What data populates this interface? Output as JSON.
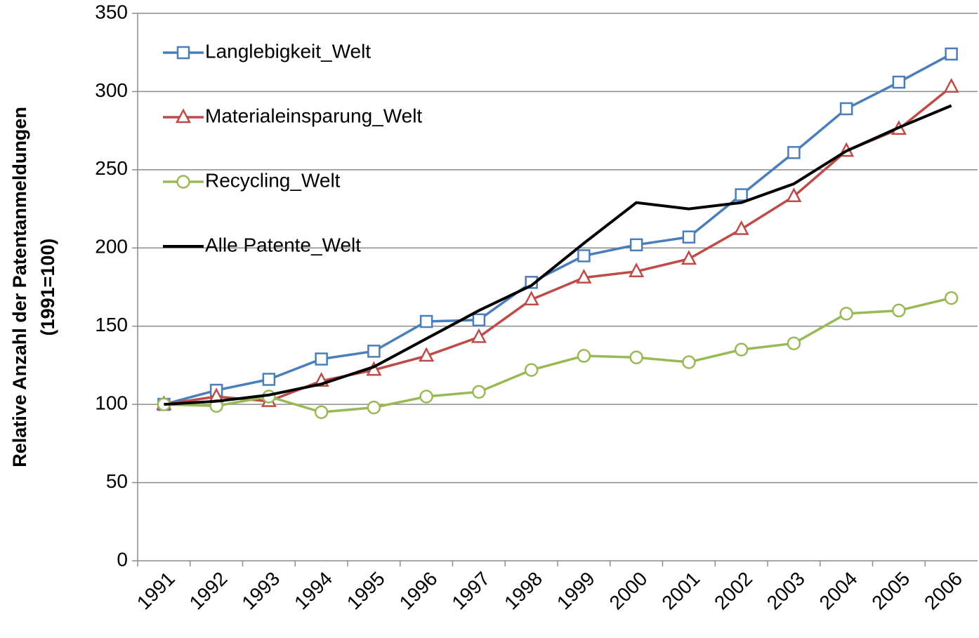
{
  "chart_data": {
    "type": "line",
    "ylabel": [
      "Relative Anzahl der Patentanmeldungen",
      "(1991=100)"
    ],
    "categories": [
      "1991",
      "1992",
      "1993",
      "1994",
      "1995",
      "1996",
      "1997",
      "1998",
      "1999",
      "2000",
      "2001",
      "2002",
      "2003",
      "2004",
      "2005",
      "2006"
    ],
    "series": [
      {
        "name": "Langlebigkeit_Welt",
        "color": "#4a7ebb",
        "marker": "square",
        "values": [
          100,
          109,
          116,
          129,
          134,
          153,
          154,
          178,
          195,
          202,
          207,
          234,
          261,
          289,
          306,
          324
        ]
      },
      {
        "name": "Materialeinsparung_Welt",
        "color": "#be4b48",
        "marker": "triangle",
        "values": [
          100,
          105,
          102,
          115,
          122,
          131,
          143,
          167,
          181,
          185,
          193,
          212,
          233,
          262,
          276,
          303
        ]
      },
      {
        "name": "Recycling_Welt",
        "color": "#98b954",
        "marker": "circle",
        "values": [
          100,
          99,
          105,
          95,
          98,
          105,
          108,
          122,
          131,
          130,
          127,
          135,
          139,
          158,
          160,
          168
        ]
      },
      {
        "name": "Alle Patente_Welt",
        "color": "#000000",
        "marker": "none",
        "values": [
          100,
          102,
          106,
          113,
          124,
          142,
          160,
          176,
          203,
          229,
          225,
          229,
          241,
          262,
          277,
          291
        ]
      }
    ],
    "ylim": [
      0,
      350
    ],
    "yticks": [
      0,
      50,
      100,
      150,
      200,
      250,
      300,
      350
    ],
    "grid": true,
    "legend": "upper left"
  }
}
